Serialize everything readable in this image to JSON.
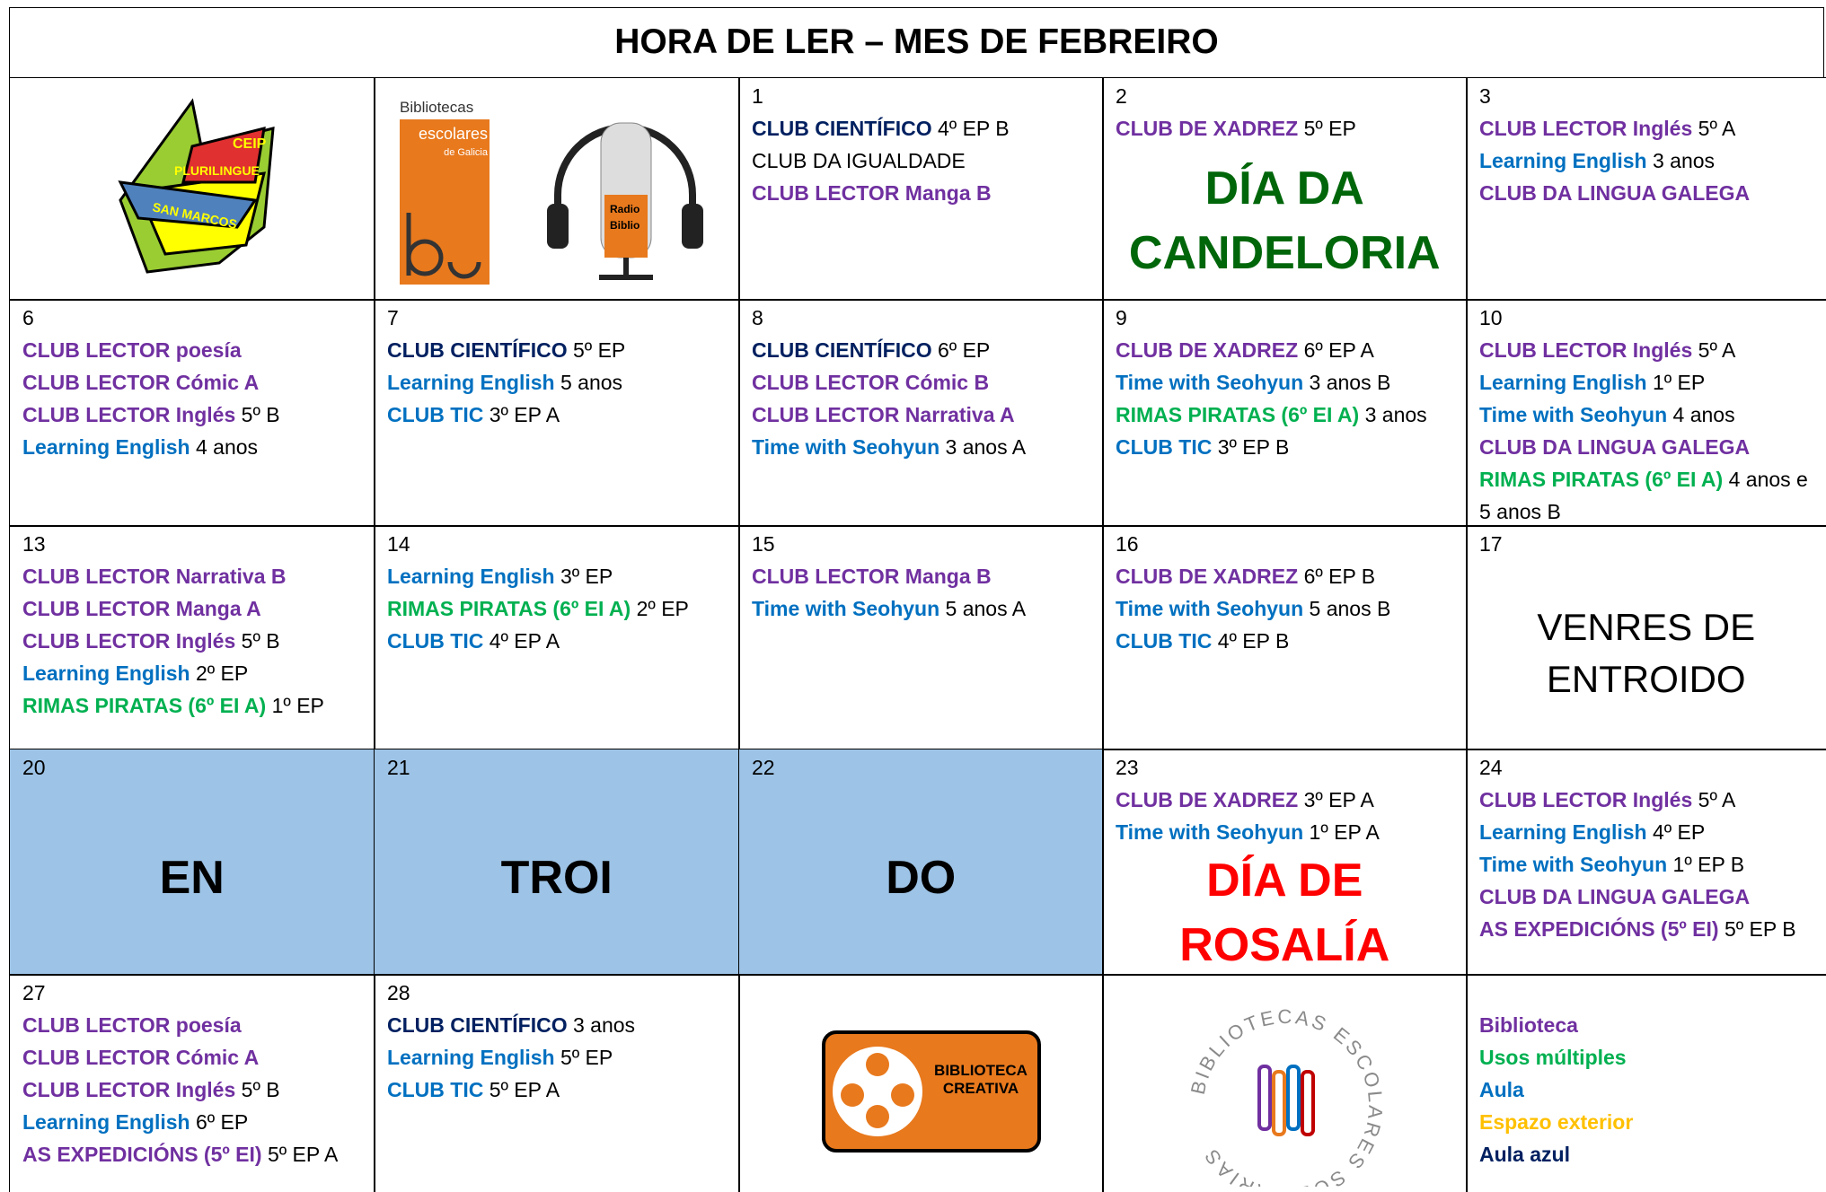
{
  "title": "HORA DE LER – MES DE FEBREIRO",
  "rows": [
    [
      {
        "school_logo": [
          "CEIP",
          "PLURILINGUE",
          "SAN MARCOS"
        ]
      },
      {
        "bibliotecas_logo": [
          "Bibliotecas",
          "escolares",
          "de Galicia"
        ],
        "radio_logo": [
          "Radio",
          "Biblio"
        ]
      },
      {
        "day": "1",
        "lines": [
          [
            {
              "text": "CLUB CIENTÍFICO",
              "color": "#002060"
            },
            "4º EP B"
          ],
          [
            "CLUB DA IGUALDADE"
          ],
          [
            {
              "text": "CLUB LECTOR  Manga B",
              "color": "#7030a0"
            }
          ]
        ]
      },
      {
        "day": "2",
        "lines": [
          [
            {
              "text": "CLUB DE XADREZ",
              "color": "#7030a0"
            },
            "5º EP"
          ]
        ],
        "big": {
          "lines": [
            "DÍA DA",
            "CANDELORIA"
          ],
          "color": "#00660a",
          "bold": true
        }
      },
      {
        "day": "3",
        "lines": [
          [
            {
              "text": "CLUB LECTOR Inglés",
              "color": "#7030a0"
            },
            "5º A"
          ],
          [
            {
              "text": "Learning English",
              "color": "#0070c0"
            },
            "3 anos"
          ],
          [
            {
              "text": "CLUB DA LINGUA GALEGA",
              "color": "#7030a0"
            }
          ]
        ]
      }
    ],
    [
      {
        "day": "6",
        "lines": [
          [
            {
              "text": "CLUB LECTOR poesía",
              "color": "#7030a0"
            }
          ],
          [
            {
              "text": "CLUB LECTOR Cómic A",
              "color": "#7030a0"
            }
          ],
          [
            {
              "text": "CLUB LECTOR Inglés",
              "color": "#7030a0"
            },
            "5º B"
          ],
          [
            {
              "text": "Learning English",
              "color": "#0070c0"
            },
            "4 anos"
          ]
        ]
      },
      {
        "day": "7",
        "lines": [
          [
            {
              "text": "CLUB CIENTÍFICO",
              "color": "#002060"
            },
            "5º EP"
          ],
          [
            {
              "text": "Learning English",
              "color": "#0070c0"
            },
            "5 anos"
          ],
          [
            {
              "text": "CLUB TIC",
              "color": "#0070c0"
            },
            "3º EP A"
          ]
        ]
      },
      {
        "day": "8",
        "lines": [
          [
            {
              "text": "CLUB CIENTÍFICO",
              "color": "#002060"
            },
            "6º EP"
          ],
          [
            {
              "text": "CLUB LECTOR Cómic B",
              "color": "#7030a0"
            }
          ],
          [
            {
              "text": "CLUB LECTOR Narrativa A",
              "color": "#7030a0"
            }
          ],
          [
            {
              "text": "Time with Seohyun",
              "color": "#0070c0"
            },
            "3 anos A"
          ]
        ]
      },
      {
        "day": "9",
        "lines": [
          [
            {
              "text": "CLUB DE XADREZ",
              "color": "#7030a0"
            },
            "6º EP A"
          ],
          [
            {
              "text": "Time with Seohyun",
              "color": "#0070c0"
            },
            "3 anos B"
          ],
          [
            {
              "text": "RIMAS PIRATAS (6º EI A)",
              "color": "#00b050"
            },
            "3 anos"
          ],
          [
            {
              "text": "CLUB TIC",
              "color": "#0070c0"
            },
            "3º EP B"
          ]
        ]
      },
      {
        "day": "10",
        "lines": [
          [
            {
              "text": "CLUB LECTOR Inglés",
              "color": "#7030a0"
            },
            "5º A"
          ],
          [
            {
              "text": "Learning English",
              "color": "#0070c0"
            },
            "1º EP"
          ],
          [
            {
              "text": "Time with Seohyun",
              "color": "#0070c0"
            },
            "4 anos"
          ],
          [
            {
              "text": "CLUB DA LINGUA GALEGA",
              "color": "#7030a0"
            }
          ],
          [
            {
              "text": "RIMAS PIRATAS (6º EI A)",
              "color": "#00b050"
            },
            "4 anos e 5 anos B"
          ]
        ]
      }
    ],
    [
      {
        "day": "13",
        "lines": [
          [
            {
              "text": "CLUB LECTOR Narrativa B",
              "color": "#7030a0"
            }
          ],
          [
            {
              "text": "CLUB LECTOR Manga A",
              "color": "#7030a0"
            }
          ],
          [
            {
              "text": "CLUB LECTOR Inglés",
              "color": "#7030a0"
            },
            "5º B"
          ],
          [
            {
              "text": "Learning English",
              "color": "#0070c0"
            },
            "2º EP"
          ],
          [
            {
              "text": "RIMAS PIRATAS (6º EI A)",
              "color": "#00b050"
            },
            "1º EP"
          ]
        ]
      },
      {
        "day": "14",
        "lines": [
          [
            {
              "text": "Learning English",
              "color": "#0070c0"
            },
            "3º EP"
          ],
          [
            {
              "text": "RIMAS PIRATAS (6º EI A)",
              "color": "#00b050"
            },
            "2º EP"
          ],
          [
            {
              "text": "CLUB TIC",
              "color": "#0070c0"
            },
            "4º EP A"
          ]
        ]
      },
      {
        "day": "15",
        "lines": [
          [
            {
              "text": "CLUB LECTOR Manga B",
              "color": "#7030a0"
            }
          ],
          [
            {
              "text": "Time with Seohyun",
              "color": "#0070c0"
            },
            "5 anos A"
          ]
        ]
      },
      {
        "day": "16",
        "lines": [
          [
            {
              "text": "CLUB DE XADREZ",
              "color": "#7030a0"
            },
            "6º EP B"
          ],
          [
            {
              "text": "Time with Seohyun",
              "color": "#0070c0"
            },
            "5 anos B"
          ],
          [
            {
              "text": "CLUB TIC",
              "color": "#0070c0"
            },
            "4º EP B"
          ]
        ]
      },
      {
        "day": "17",
        "big": {
          "lines": [
            "VENRES DE",
            "ENTROIDO"
          ],
          "color": "#000000",
          "bold": false
        }
      }
    ],
    [
      {
        "day": "20",
        "fill": "#9dc3e6",
        "big": {
          "lines": [
            "EN"
          ],
          "color": "#000000",
          "bold": true
        }
      },
      {
        "day": "21",
        "fill": "#9dc3e6",
        "big": {
          "lines": [
            "TROI"
          ],
          "color": "#000000",
          "bold": true
        }
      },
      {
        "day": "22",
        "fill": "#9dc3e6",
        "big": {
          "lines": [
            "DO"
          ],
          "color": "#000000",
          "bold": true
        }
      },
      {
        "day": "23",
        "lines": [
          [
            {
              "text": "CLUB DE XADREZ",
              "color": "#7030a0"
            },
            "3º EP A"
          ],
          [
            {
              "text": "Time with Seohyun",
              "color": "#0070c0"
            },
            "1º EP A"
          ]
        ],
        "big": {
          "lines": [
            "DÍA DE",
            "ROSALÍA"
          ],
          "color": "#ff0000",
          "bold": true
        }
      },
      {
        "day": "24",
        "lines": [
          [
            {
              "text": "CLUB LECTOR Inglés",
              "color": "#7030a0"
            },
            "5º A"
          ],
          [
            {
              "text": "Learning English",
              "color": "#0070c0"
            },
            "4º EP"
          ],
          [
            {
              "text": "Time with Seohyun",
              "color": "#0070c0"
            },
            "1º EP B"
          ],
          [
            {
              "text": "CLUB DA LINGUA GALEGA",
              "color": "#7030a0"
            }
          ],
          [
            {
              "text": "AS EXPEDICIÓNS (5º EI)",
              "color": "#7030a0"
            },
            "5º EP B"
          ]
        ]
      }
    ],
    [
      {
        "day": "27",
        "lines": [
          [
            {
              "text": "CLUB LECTOR poesía",
              "color": "#7030a0"
            }
          ],
          [
            {
              "text": "CLUB LECTOR Cómic A",
              "color": "#7030a0"
            }
          ],
          [
            {
              "text": "CLUB LECTOR Inglés",
              "color": "#7030a0"
            },
            "5º B"
          ],
          [
            {
              "text": "Learning English",
              "color": "#0070c0"
            },
            "6º EP"
          ],
          [
            {
              "text": "AS EXPEDICIÓNS (5º EI)",
              "color": "#7030a0"
            },
            "5º EP A"
          ]
        ]
      },
      {
        "day": "28",
        "lines": [
          [
            {
              "text": "CLUB CIENTÍFICO",
              "color": "#002060"
            },
            "3 anos"
          ],
          [
            {
              "text": "Learning English",
              "color": "#0070c0"
            },
            "5º EP"
          ],
          [
            {
              "text": "CLUB TIC",
              "color": "#0070c0"
            },
            "5º EP A"
          ]
        ]
      },
      {
        "creativa_logo": [
          "BIBLIOTECA",
          "CREATIVA"
        ]
      },
      {
        "solidarias_logo": "BIBLIOTECAS ESCOLARES SOLIDARIAS"
      },
      {
        "legend": [
          {
            "text": "Biblioteca",
            "color": "#7030a0"
          },
          {
            "text": "Usos múltiples",
            "color": "#00b050"
          },
          {
            "text": "Aula",
            "color": "#0070c0"
          },
          {
            "text": "Espazo exterior",
            "color": "#ffc000"
          },
          {
            "text": "Aula azul",
            "color": "#002060"
          }
        ]
      }
    ]
  ]
}
